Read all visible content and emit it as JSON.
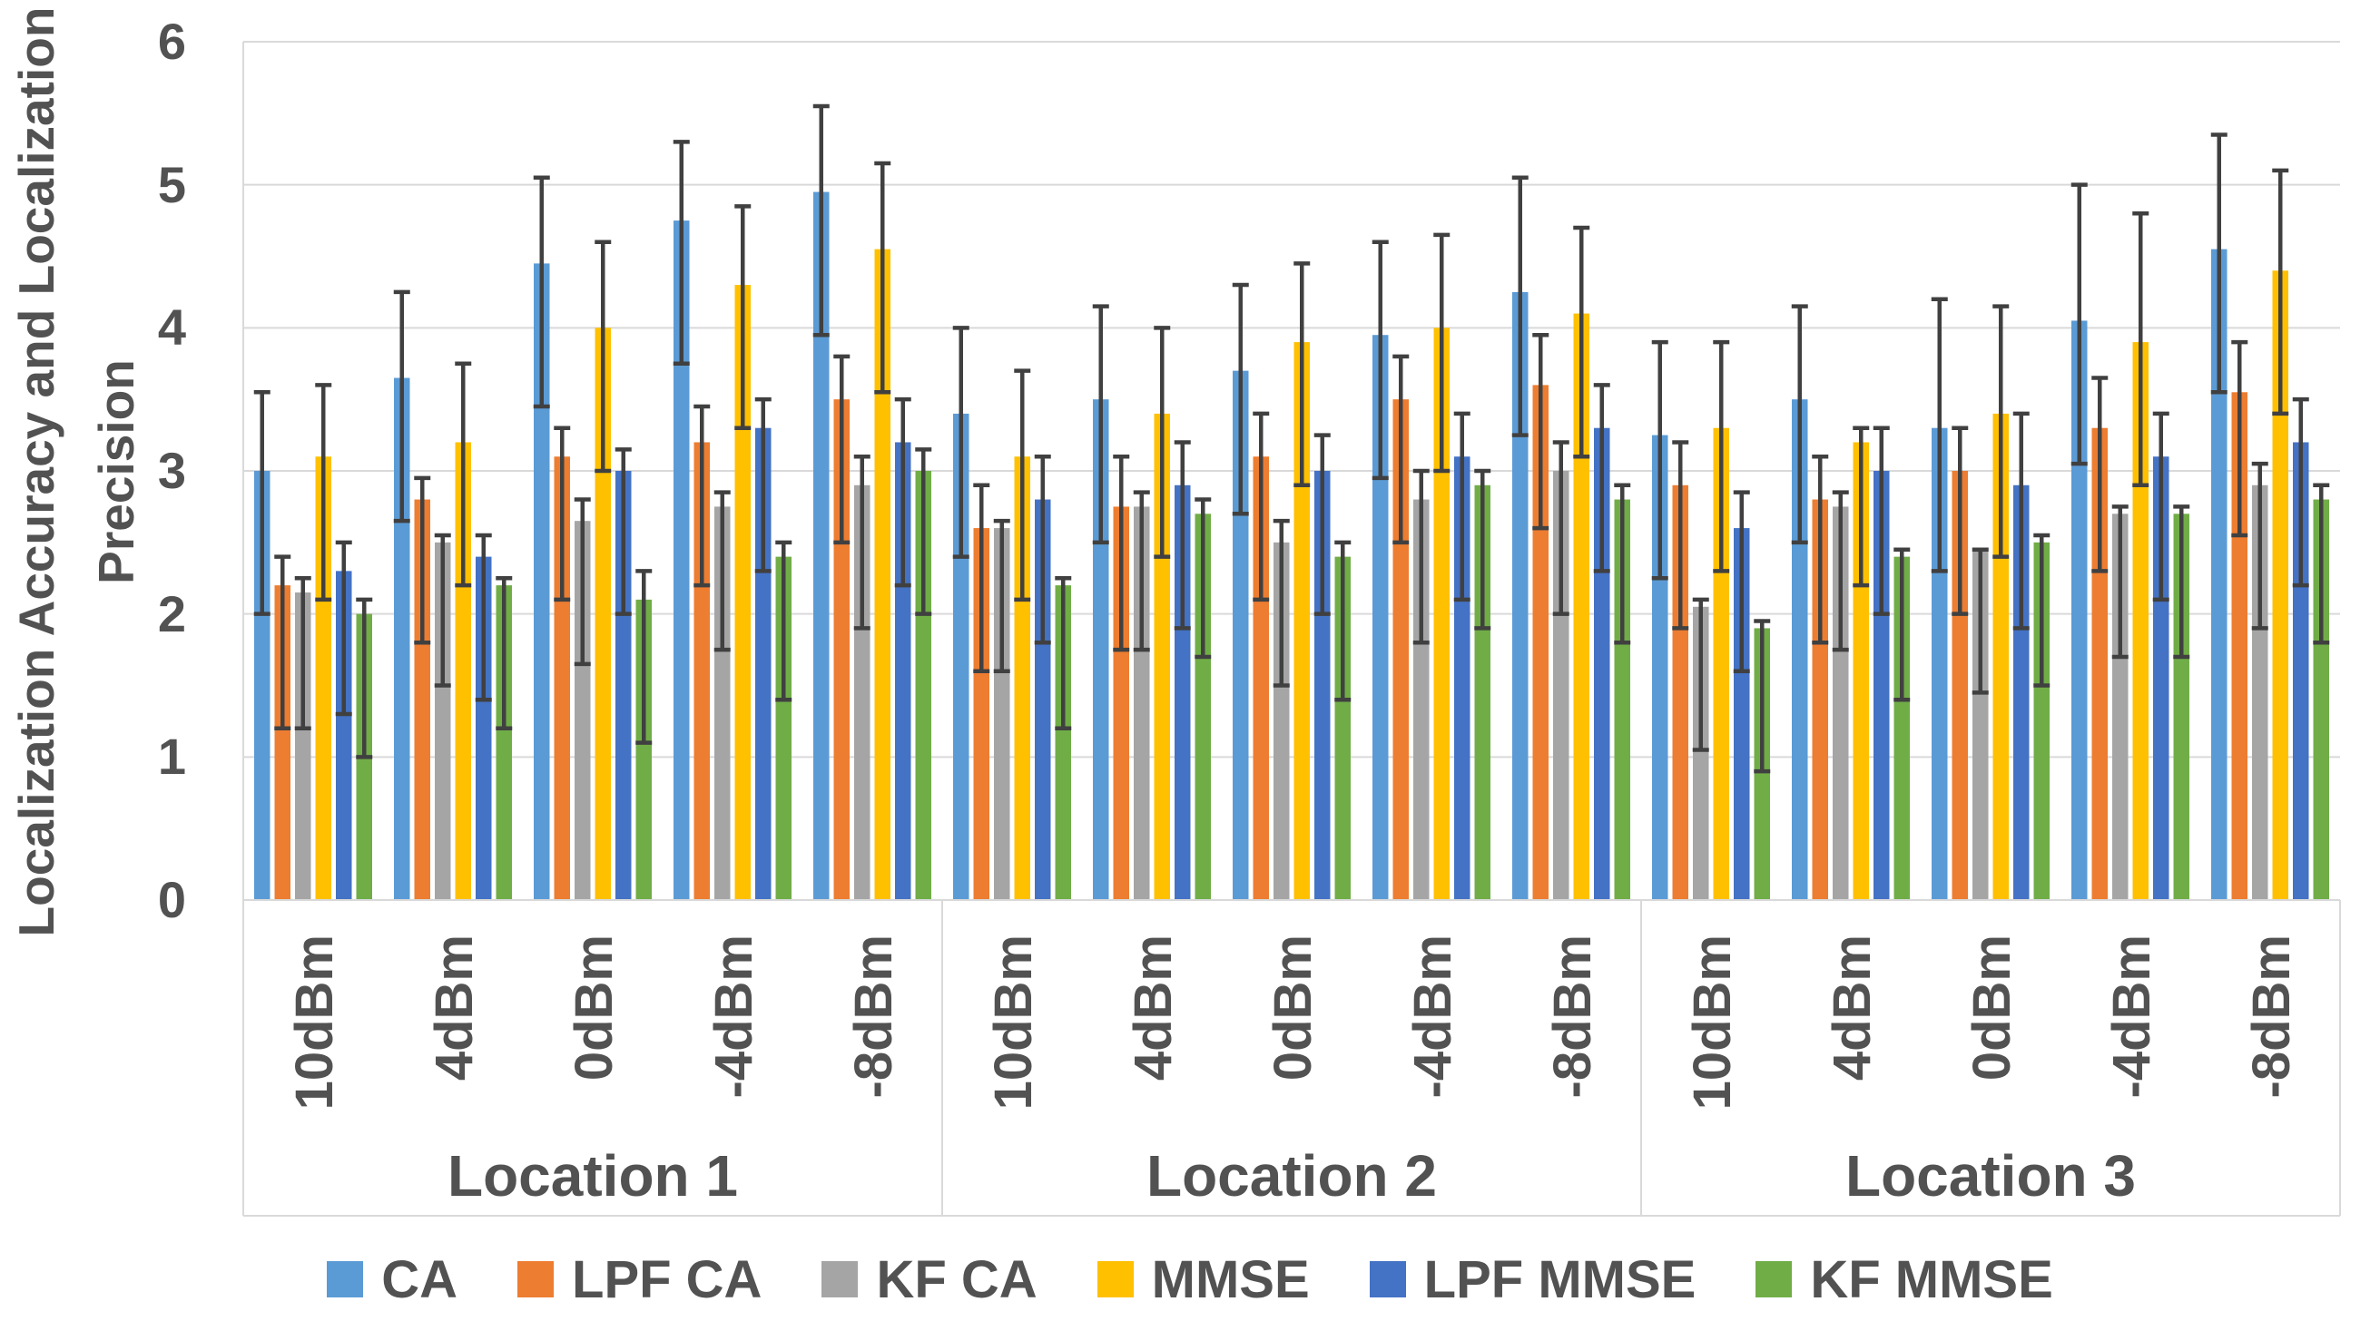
{
  "chart_data": {
    "type": "bar",
    "title": "",
    "ylabel_line1": "Localization Accuracy and Localization",
    "ylabel_line2": "Precision",
    "ylim": [
      0,
      6
    ],
    "yticks": [
      6,
      5,
      4,
      3,
      2,
      1,
      0
    ],
    "grid": "horizontal",
    "legend_position": "bottom",
    "locations": [
      "Location 1",
      "Location 2",
      "Location 3"
    ],
    "power_levels": [
      "10dBm",
      "4dBm",
      "0dBm",
      "-4dBm",
      "-8dBm"
    ],
    "error_bars": "asymmetric, values are whisker endpoints per location per power level",
    "colors": {
      "gridline": "#D9D9D9",
      "axis_band_line": "#D9D9D9",
      "error_bar": "#404040",
      "text": "#525252",
      "background": "#FFFFFF"
    },
    "series": [
      {
        "name": "CA",
        "color": "#5B9BD5",
        "values": [
          [
            3.0,
            3.65,
            4.45,
            4.75,
            4.95
          ],
          [
            3.4,
            3.5,
            3.7,
            3.95,
            4.25
          ],
          [
            3.25,
            3.5,
            3.3,
            4.05,
            4.55
          ]
        ],
        "err_low": [
          [
            2.0,
            2.65,
            3.45,
            3.75,
            3.95
          ],
          [
            2.4,
            2.5,
            2.7,
            2.95,
            3.25
          ],
          [
            2.25,
            2.5,
            2.3,
            3.05,
            3.55
          ]
        ],
        "err_high": [
          [
            3.55,
            4.25,
            5.05,
            5.3,
            5.55
          ],
          [
            4.0,
            4.15,
            4.3,
            4.6,
            5.05
          ],
          [
            3.9,
            4.15,
            4.2,
            5.0,
            5.35
          ]
        ]
      },
      {
        "name": "LPF CA",
        "color": "#ED7D31",
        "values": [
          [
            2.2,
            2.8,
            3.1,
            3.2,
            3.5
          ],
          [
            2.6,
            2.75,
            3.1,
            3.5,
            3.6
          ],
          [
            2.9,
            2.8,
            3.0,
            3.3,
            3.55
          ]
        ],
        "err_low": [
          [
            1.2,
            1.8,
            2.1,
            2.2,
            2.5
          ],
          [
            1.6,
            1.75,
            2.1,
            2.5,
            2.6
          ],
          [
            1.9,
            1.8,
            2.0,
            2.3,
            2.55
          ]
        ],
        "err_high": [
          [
            2.4,
            2.95,
            3.3,
            3.45,
            3.8
          ],
          [
            2.9,
            3.1,
            3.4,
            3.8,
            3.95
          ],
          [
            3.2,
            3.1,
            3.3,
            3.65,
            3.9
          ]
        ]
      },
      {
        "name": "KF CA",
        "color": "#A5A5A5",
        "values": [
          [
            2.15,
            2.5,
            2.65,
            2.75,
            2.9
          ],
          [
            2.6,
            2.75,
            2.5,
            2.8,
            3.0
          ],
          [
            2.05,
            2.75,
            2.45,
            2.7,
            2.9
          ]
        ],
        "err_low": [
          [
            1.2,
            1.5,
            1.65,
            1.75,
            1.9
          ],
          [
            1.6,
            1.75,
            1.5,
            1.8,
            2.0
          ],
          [
            1.05,
            1.75,
            1.45,
            1.7,
            1.9
          ]
        ],
        "err_high": [
          [
            2.25,
            2.55,
            2.8,
            2.85,
            3.1
          ],
          [
            2.65,
            2.85,
            2.65,
            3.0,
            3.2
          ],
          [
            2.1,
            2.85,
            2.45,
            2.75,
            3.05
          ]
        ]
      },
      {
        "name": "MMSE",
        "color": "#FFC000",
        "values": [
          [
            3.1,
            3.2,
            4.0,
            4.3,
            4.55
          ],
          [
            3.1,
            3.4,
            3.9,
            4.0,
            4.1
          ],
          [
            3.3,
            3.2,
            3.4,
            3.9,
            4.4
          ]
        ],
        "err_low": [
          [
            2.1,
            2.2,
            3.0,
            3.3,
            3.55
          ],
          [
            2.1,
            2.4,
            2.9,
            3.0,
            3.1
          ],
          [
            2.3,
            2.2,
            2.4,
            2.9,
            3.4
          ]
        ],
        "err_high": [
          [
            3.6,
            3.75,
            4.6,
            4.85,
            5.15
          ],
          [
            3.7,
            4.0,
            4.45,
            4.65,
            4.7
          ],
          [
            3.9,
            3.3,
            4.15,
            4.8,
            5.1
          ]
        ]
      },
      {
        "name": "LPF MMSE",
        "color": "#4472C4",
        "values": [
          [
            2.3,
            2.4,
            3.0,
            3.3,
            3.2
          ],
          [
            2.8,
            2.9,
            3.0,
            3.1,
            3.3
          ],
          [
            2.6,
            3.0,
            2.9,
            3.1,
            3.2
          ]
        ],
        "err_low": [
          [
            1.3,
            1.4,
            2.0,
            2.3,
            2.2
          ],
          [
            1.8,
            1.9,
            2.0,
            2.1,
            2.3
          ],
          [
            1.6,
            2.0,
            1.9,
            2.1,
            2.2
          ]
        ],
        "err_high": [
          [
            2.5,
            2.55,
            3.15,
            3.5,
            3.5
          ],
          [
            3.1,
            3.2,
            3.25,
            3.4,
            3.6
          ],
          [
            2.85,
            3.3,
            3.4,
            3.4,
            3.5
          ]
        ]
      },
      {
        "name": "KF MMSE",
        "color": "#70AD47",
        "values": [
          [
            2.0,
            2.2,
            2.1,
            2.4,
            3.0
          ],
          [
            2.2,
            2.7,
            2.4,
            2.9,
            2.8
          ],
          [
            1.9,
            2.4,
            2.5,
            2.7,
            2.8
          ]
        ],
        "err_low": [
          [
            1.0,
            1.2,
            1.1,
            1.4,
            2.0
          ],
          [
            1.2,
            1.7,
            1.4,
            1.9,
            1.8
          ],
          [
            0.9,
            1.4,
            1.5,
            1.7,
            1.8
          ]
        ],
        "err_high": [
          [
            2.1,
            2.25,
            2.3,
            2.5,
            3.15
          ],
          [
            2.25,
            2.8,
            2.5,
            3.0,
            2.9
          ],
          [
            1.95,
            2.45,
            2.55,
            2.75,
            2.9
          ]
        ]
      }
    ]
  }
}
